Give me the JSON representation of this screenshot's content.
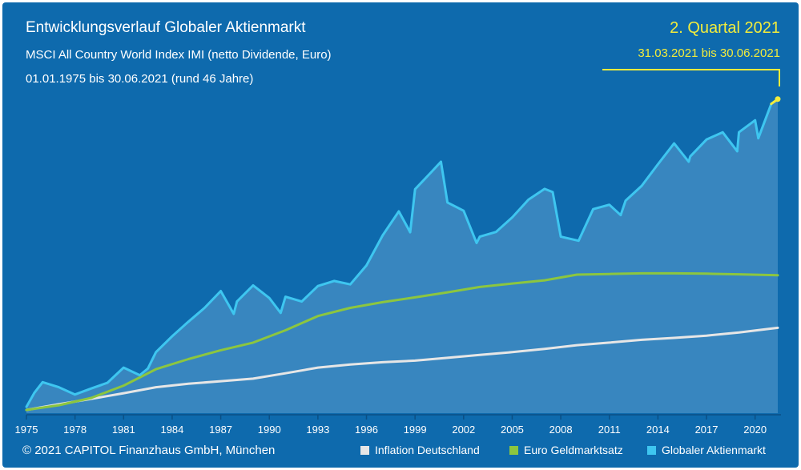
{
  "chart_data": {
    "type": "line",
    "title": "Entwicklungsverlauf Globaler Aktienmarkt",
    "subtitle": "MSCI All Country World Index IMI (netto Dividende, Euro)",
    "period": "01.01.1975 bis 30.06.2021 (rund 46 Jahre)",
    "highlight": {
      "label": "2. Quartal 2021",
      "range": "31.03.2021 bis 30.06.2021",
      "color": "#f2ec3c"
    },
    "x_ticks": [
      "1975",
      "1978",
      "1981",
      "1984",
      "1987",
      "1990",
      "1993",
      "1996",
      "1999",
      "2002",
      "2005",
      "2008",
      "2011",
      "2014",
      "2017",
      "2020"
    ],
    "xlim": [
      1975,
      2021.5
    ],
    "ylim": [
      0,
      100
    ],
    "grid": false,
    "legend_position": "bottom-right",
    "series": [
      {
        "name": "Inflation Deutschland",
        "color": "#e6e6e6",
        "x": [
          1975,
          1977,
          1979,
          1981,
          1983,
          1985,
          1987,
          1989,
          1991,
          1993,
          1995,
          1997,
          1999,
          2001,
          2003,
          2005,
          2007,
          2009,
          2011,
          2013,
          2015,
          2017,
          2019,
          2021.4
        ],
        "y": [
          1,
          2.8,
          4.5,
          6.3,
          8.2,
          9.3,
          10.1,
          10.9,
          12.6,
          14.4,
          15.4,
          16.1,
          16.6,
          17.5,
          18.4,
          19.3,
          20.3,
          21.5,
          22.3,
          23.2,
          23.8,
          24.5,
          25.5,
          27
        ]
      },
      {
        "name": "Euro Geldmarktsatz",
        "color": "#8cc63f",
        "x": [
          1975,
          1977,
          1979,
          1981,
          1983,
          1985,
          1987,
          1989,
          1991,
          1993,
          1995,
          1997,
          1999,
          2001,
          2003,
          2005,
          2007,
          2009,
          2011,
          2013,
          2015,
          2017,
          2019,
          2021.4
        ],
        "y": [
          1,
          2.5,
          4.8,
          8.7,
          13.9,
          17.1,
          19.9,
          22.3,
          26.2,
          30.7,
          33.3,
          35.1,
          36.6,
          38.2,
          39.9,
          41,
          42,
          43.8,
          44,
          44.2,
          44.2,
          44.1,
          43.9,
          43.6
        ]
      },
      {
        "name": "Globaler Aktienmarkt",
        "color": "#3ec6f0",
        "x": [
          1975,
          1975.5,
          1976,
          1977,
          1978,
          1979,
          1980,
          1981,
          1982,
          1982.5,
          1983,
          1984,
          1985,
          1986,
          1987,
          1987.8,
          1988,
          1989,
          1990,
          1990.7,
          1991,
          1992,
          1993,
          1994,
          1995,
          1996,
          1997,
          1998,
          1998.7,
          1999,
          2000,
          2000.6,
          2001,
          2002,
          2002.8,
          2003,
          2004,
          2005,
          2006,
          2007,
          2007.5,
          2008,
          2009.1,
          2010,
          2011,
          2011.7,
          2012,
          2013,
          2014,
          2015,
          2015.9,
          2016,
          2017,
          2018,
          2018.9,
          2019,
          2020,
          2020.2,
          2021,
          2021.4
        ],
        "y": [
          2,
          6.5,
          9.8,
          8.2,
          5.9,
          7.8,
          9.6,
          14.4,
          12,
          14.1,
          19.3,
          24.3,
          28.9,
          33.3,
          38.6,
          31.4,
          35.3,
          40.4,
          36.4,
          31.7,
          36.8,
          35.3,
          40.2,
          41.8,
          40.7,
          46.7,
          56.2,
          63.8,
          57.2,
          70.8,
          76.2,
          79.5,
          66.6,
          64,
          53.8,
          55.8,
          57.3,
          61.9,
          67.5,
          70.9,
          69.9,
          55.8,
          54.5,
          64.5,
          65.9,
          62.6,
          67.2,
          71.9,
          78.7,
          85.3,
          79.5,
          81.2,
          86.5,
          88.8,
          82.8,
          88.8,
          92.6,
          86.9,
          97.8,
          99.3
        ]
      }
    ]
  },
  "footer": {
    "copyright": "© 2021 CAPITOL Finanzhaus GmbH, München"
  }
}
